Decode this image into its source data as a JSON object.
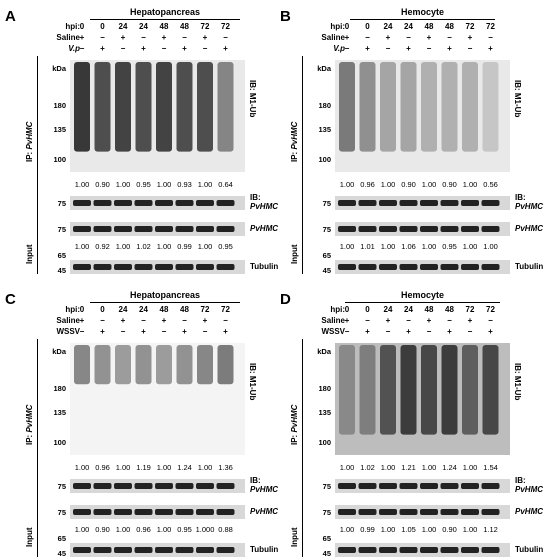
{
  "panels": [
    {
      "letter": "A",
      "title": "Hepatopancreas",
      "hpi": [
        "0",
        "0",
        "24",
        "24",
        "48",
        "48",
        "72",
        "72"
      ],
      "treat_label": "V.p",
      "saline": [
        "+",
        "−",
        "+",
        "−",
        "+",
        "−",
        "+",
        "−"
      ],
      "treat": [
        "−",
        "+",
        "−",
        "+",
        "−",
        "+",
        "−",
        "+"
      ],
      "kda": "kDa",
      "mw_top": [
        "180",
        "135",
        "100"
      ],
      "ratios1": [
        "1.00",
        "0.90",
        "1.00",
        "0.95",
        "1.00",
        "0.93",
        "1.00",
        "0.64"
      ],
      "ratios2": [
        "1.00",
        "0.92",
        "1.00",
        "1.02",
        "1.00",
        "0.99",
        "1.00",
        "0.95"
      ],
      "mw_ib": "75",
      "mw_in1": "75",
      "mw_in2a": "65",
      "mw_in2b": "45"
    },
    {
      "letter": "B",
      "title": "Hemocyte",
      "hpi": [
        "0",
        "0",
        "24",
        "24",
        "48",
        "48",
        "72",
        "72"
      ],
      "treat_label": "V.p",
      "saline": [
        "+",
        "−",
        "+",
        "−",
        "+",
        "−",
        "+",
        "−"
      ],
      "treat": [
        "−",
        "+",
        "−",
        "+",
        "−",
        "+",
        "−",
        "+"
      ],
      "kda": "kDa",
      "mw_top": [
        "180",
        "135",
        "100"
      ],
      "ratios1": [
        "1.00",
        "0.96",
        "1.00",
        "0.90",
        "1.00",
        "0.90",
        "1.00",
        "0.56"
      ],
      "ratios2": [
        "1.00",
        "1.01",
        "1.00",
        "1.06",
        "1.00",
        "0.95",
        "1.00",
        "1.00"
      ],
      "mw_ib": "75",
      "mw_in1": "75",
      "mw_in2a": "65",
      "mw_in2b": "45"
    },
    {
      "letter": "C",
      "title": "Hepatopancreas",
      "hpi": [
        "0",
        "0",
        "24",
        "24",
        "48",
        "48",
        "72",
        "72"
      ],
      "treat_label": "WSSV",
      "saline": [
        "+",
        "−",
        "+",
        "−",
        "+",
        "−",
        "+",
        "−"
      ],
      "treat": [
        "−",
        "+",
        "−",
        "+",
        "−",
        "+",
        "−",
        "+"
      ],
      "kda": "kDa",
      "mw_top": [
        "180",
        "135",
        "100"
      ],
      "ratios1": [
        "1.00",
        "0.96",
        "1.00",
        "1.19",
        "1.00",
        "1.24",
        "1.00",
        "1.36"
      ],
      "ratios2": [
        "1.00",
        "0.90",
        "1.00",
        "0.96",
        "1.00",
        "0.95",
        "1.000",
        "0.88"
      ],
      "mw_ib": "75",
      "mw_in1": "75",
      "mw_in2a": "65",
      "mw_in2b": "45"
    },
    {
      "letter": "D",
      "title": "Hemocyte",
      "hpi": [
        "0",
        "0",
        "24",
        "24",
        "48",
        "48",
        "72",
        "72"
      ],
      "treat_label": "WSSV",
      "saline": [
        "+",
        "−",
        "+",
        "−",
        "+",
        "−",
        "+",
        "−"
      ],
      "treat": [
        "−",
        "+",
        "−",
        "+",
        "−",
        "+",
        "−",
        "+"
      ],
      "kda": "kDa",
      "mw_top": [
        "180",
        "135",
        "100"
      ],
      "ratios1": [
        "1.00",
        "1.02",
        "1.00",
        "1.21",
        "1.00",
        "1.24",
        "1.00",
        "1.54"
      ],
      "ratios2": [
        "1.00",
        "0.99",
        "1.00",
        "1.05",
        "1.00",
        "0.90",
        "1.00",
        "1.12"
      ],
      "mw_ib": "75",
      "mw_in1": "75",
      "mw_in2a": "65",
      "mw_in2b": "45"
    }
  ],
  "labels": {
    "hpi": "hpi:",
    "saline": "Saline",
    "ib_top": "IB: M1-Ub",
    "ip": "IP: ",
    "pvhmc": "PvHMC",
    "ib": "IB:",
    "input": "Input",
    "tubulin": "Tubulin"
  }
}
